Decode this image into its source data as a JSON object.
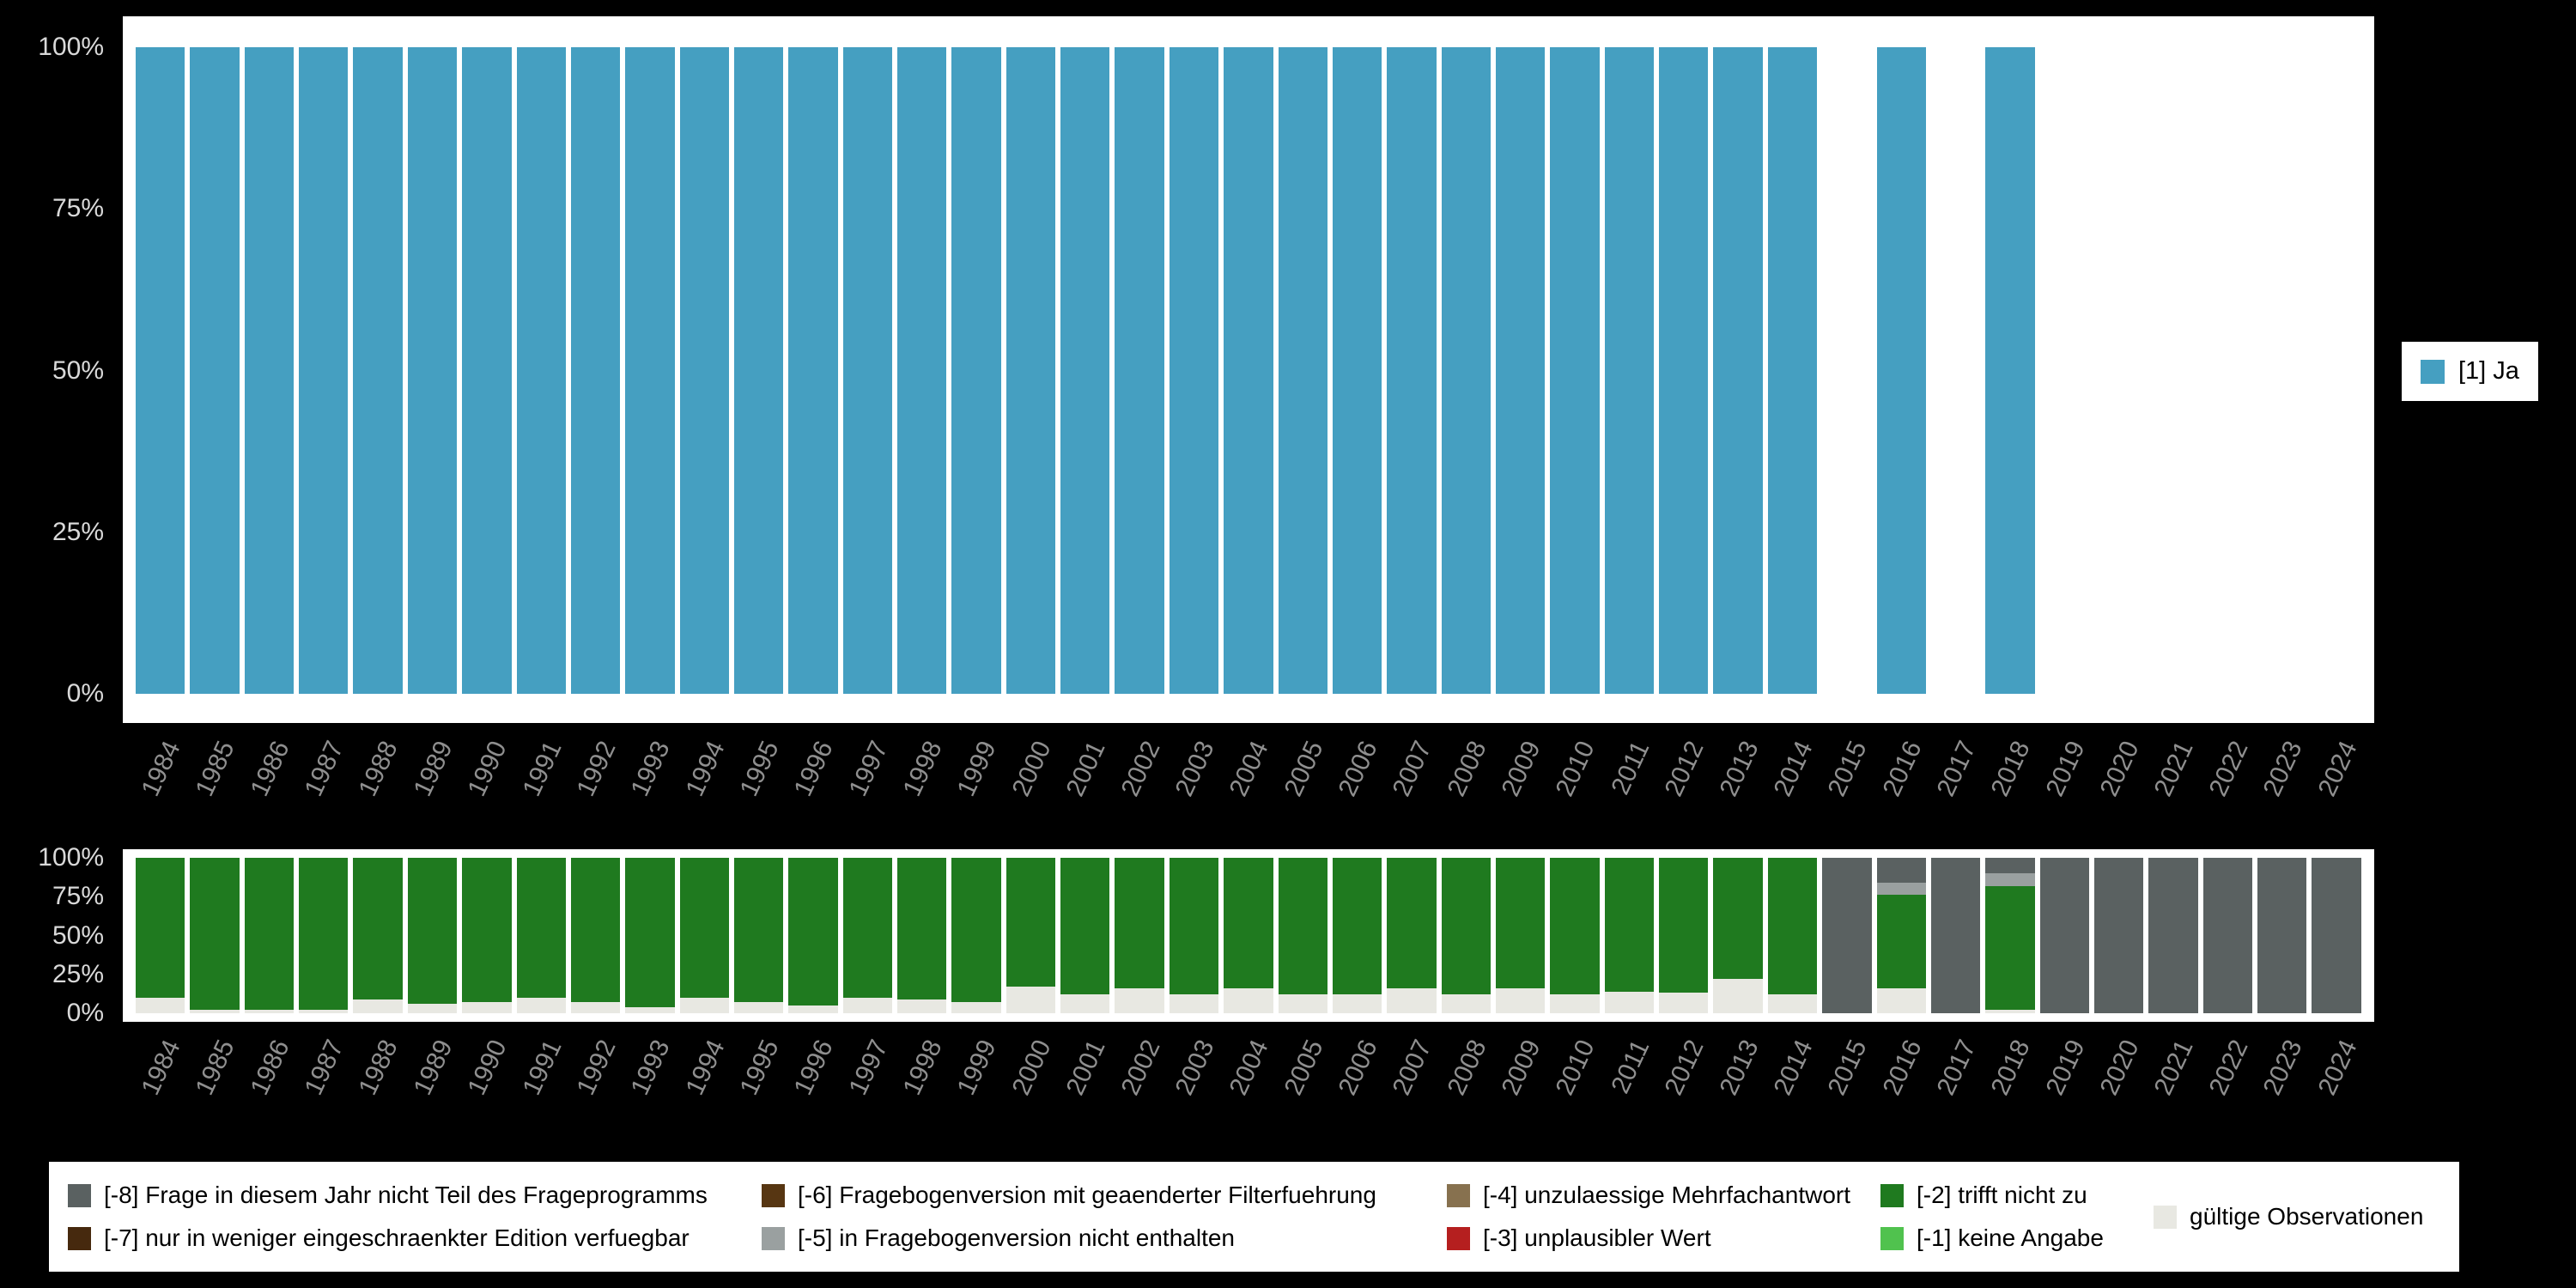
{
  "page": {
    "background": "#000000",
    "panel_background": "#ffffff"
  },
  "top_legend": {
    "label": "[1] Ja",
    "color": "#459fc1"
  },
  "bottom_legend": {
    "columns": [
      {
        "items": [
          {
            "label": "[-8] Frage in diesem Jahr nicht Teil des Frageprogramms",
            "color": "#5a6161"
          },
          {
            "label": "[-7] nur in weniger eingeschraenkter Edition verfuegbar",
            "color": "#46290e"
          }
        ]
      },
      {
        "items": [
          {
            "label": "[-6] Fragebogenversion mit geaenderter Filterfuehrung",
            "color": "#573612"
          },
          {
            "label": "[-5] in Fragebogenversion nicht enthalten",
            "color": "#9aa0a0"
          }
        ]
      },
      {
        "items": [
          {
            "label": "[-4] unzulaessige Mehrfachantwort",
            "color": "#87714f"
          },
          {
            "label": "[-3] unplausibler Wert",
            "color": "#b51f1f"
          }
        ]
      },
      {
        "items": [
          {
            "label": "[-2] trifft nicht zu",
            "color": "#1f7a1f"
          },
          {
            "label": "[-1] keine Angabe",
            "color": "#50c24e"
          }
        ]
      },
      {
        "items": [
          {
            "label": "gültige Observationen",
            "color": "#e8e8e2"
          }
        ]
      }
    ]
  },
  "chart_data": [
    {
      "type": "bar",
      "stacked": true,
      "title": "",
      "xlabel": "",
      "ylabel": "",
      "ylim": [
        0,
        100
      ],
      "grid": false,
      "legend_position": "right",
      "yticks": [
        "100%",
        "75%",
        "50%",
        "25%",
        "0%"
      ],
      "categories": [
        "1984",
        "1985",
        "1986",
        "1987",
        "1988",
        "1989",
        "1990",
        "1991",
        "1992",
        "1993",
        "1994",
        "1995",
        "1996",
        "1997",
        "1998",
        "1999",
        "2000",
        "2001",
        "2002",
        "2003",
        "2004",
        "2005",
        "2006",
        "2007",
        "2008",
        "2009",
        "2010",
        "2011",
        "2012",
        "2013",
        "2014",
        "2015",
        "2016",
        "2017",
        "2018",
        "2019",
        "2020",
        "2021",
        "2022",
        "2023",
        "2024"
      ],
      "series": [
        {
          "name": "[1] Ja",
          "color": "#459fc1",
          "values": [
            100,
            100,
            100,
            100,
            100,
            100,
            100,
            100,
            100,
            100,
            100,
            100,
            100,
            100,
            100,
            100,
            100,
            100,
            100,
            100,
            100,
            100,
            100,
            100,
            100,
            100,
            100,
            100,
            100,
            100,
            100,
            0,
            100,
            0,
            100,
            0,
            0,
            0,
            0,
            0,
            0
          ]
        }
      ]
    },
    {
      "type": "bar",
      "stacked": true,
      "title": "",
      "xlabel": "",
      "ylabel": "",
      "ylim": [
        0,
        100
      ],
      "grid": false,
      "legend_position": "bottom",
      "yticks": [
        "100%",
        "75%",
        "50%",
        "25%",
        "0%"
      ],
      "categories": [
        "1984",
        "1985",
        "1986",
        "1987",
        "1988",
        "1989",
        "1990",
        "1991",
        "1992",
        "1993",
        "1994",
        "1995",
        "1996",
        "1997",
        "1998",
        "1999",
        "2000",
        "2001",
        "2002",
        "2003",
        "2004",
        "2005",
        "2006",
        "2007",
        "2008",
        "2009",
        "2010",
        "2011",
        "2012",
        "2013",
        "2014",
        "2015",
        "2016",
        "2017",
        "2018",
        "2019",
        "2020",
        "2021",
        "2022",
        "2023",
        "2024"
      ],
      "series": [
        {
          "name": "gültige Observationen",
          "color": "#e8e8e2",
          "values": [
            10,
            2,
            2,
            2,
            9,
            6,
            7,
            10,
            7,
            4,
            10,
            7,
            5,
            10,
            9,
            7,
            17,
            12,
            16,
            12,
            16,
            12,
            12,
            16,
            12,
            16,
            12,
            14,
            13,
            22,
            12,
            0,
            16,
            0,
            2,
            0,
            0,
            0,
            0,
            0,
            0
          ]
        },
        {
          "name": "[-2] trifft nicht zu",
          "color": "#1f7a1f",
          "values": [
            90,
            98,
            98,
            98,
            91,
            94,
            93,
            90,
            93,
            96,
            90,
            93,
            95,
            90,
            91,
            93,
            83,
            88,
            84,
            88,
            84,
            88,
            88,
            84,
            88,
            84,
            88,
            86,
            87,
            78,
            88,
            0,
            60,
            0,
            80,
            0,
            0,
            0,
            0,
            0,
            0
          ]
        },
        {
          "name": "[-5] in Fragebogenversion nicht enthalten",
          "color": "#9aa0a0",
          "values": [
            0,
            0,
            0,
            0,
            0,
            0,
            0,
            0,
            0,
            0,
            0,
            0,
            0,
            0,
            0,
            0,
            0,
            0,
            0,
            0,
            0,
            0,
            0,
            0,
            0,
            0,
            0,
            0,
            0,
            0,
            0,
            0,
            8,
            0,
            8,
            0,
            0,
            0,
            0,
            0,
            0
          ]
        },
        {
          "name": "[-8] Frage in diesem Jahr nicht Teil des Frageprogramms",
          "color": "#5a6161",
          "values": [
            0,
            0,
            0,
            0,
            0,
            0,
            0,
            0,
            0,
            0,
            0,
            0,
            0,
            0,
            0,
            0,
            0,
            0,
            0,
            0,
            0,
            0,
            0,
            0,
            0,
            0,
            0,
            0,
            0,
            0,
            0,
            100,
            16,
            100,
            10,
            100,
            100,
            100,
            100,
            100,
            100
          ]
        }
      ]
    }
  ]
}
